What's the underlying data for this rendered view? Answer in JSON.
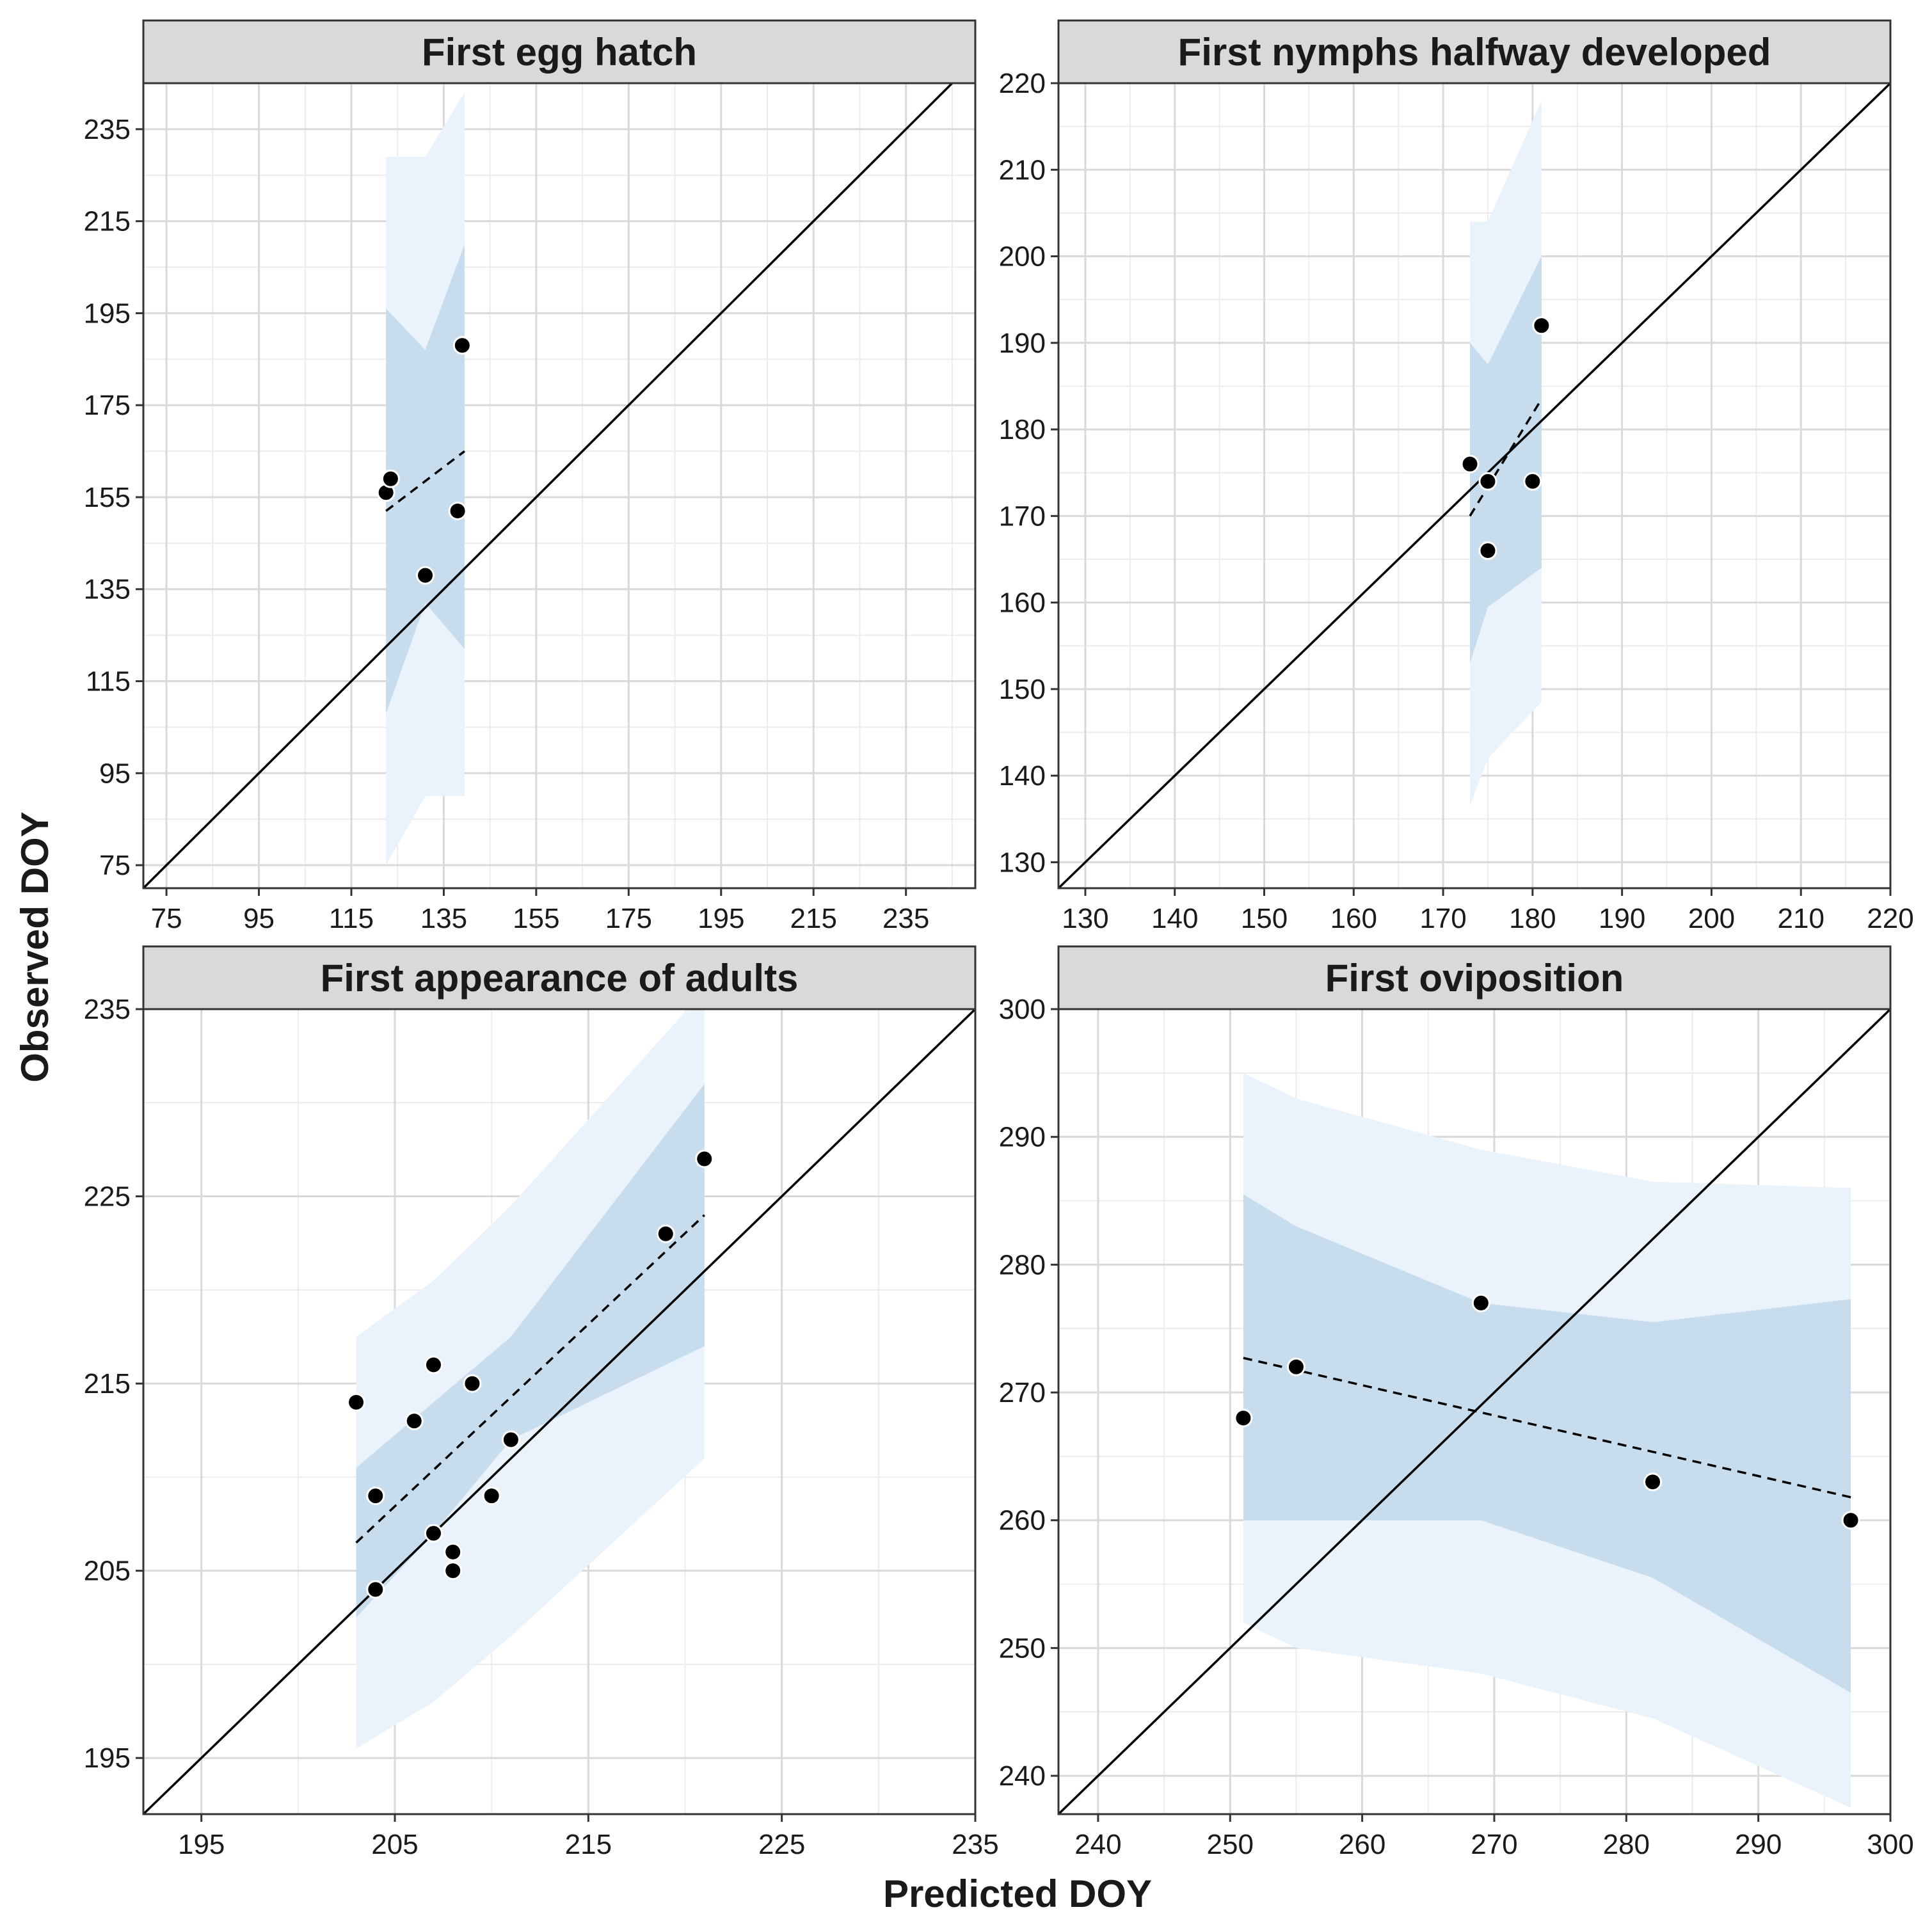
{
  "figure": {
    "xlabel": "Predicted DOY",
    "ylabel": "Observed DOY"
  },
  "colors": {
    "band_outer": "#eaf2fb",
    "band_inner": "#c7dced",
    "grid_major": "#d9d9d9",
    "grid_minor": "#ececec",
    "strip_fill": "#d9d9d9",
    "point": "#000000",
    "line": "#000000"
  },
  "chart_data": [
    {
      "type": "scatter",
      "title": "First egg hatch",
      "xlim": [
        70,
        250
      ],
      "ylim": [
        70,
        245
      ],
      "xticks": [
        75,
        95,
        115,
        135,
        155,
        175,
        195,
        215,
        235
      ],
      "yticks": [
        75,
        95,
        115,
        135,
        155,
        175,
        195,
        215,
        235
      ],
      "minor_step": 10,
      "points": [
        {
          "x": 122.5,
          "y": 156
        },
        {
          "x": 123.5,
          "y": 159
        },
        {
          "x": 131,
          "y": 138
        },
        {
          "x": 138,
          "y": 152
        },
        {
          "x": 139,
          "y": 188
        }
      ],
      "fit_line": [
        [
          122.5,
          152
        ],
        [
          139.5,
          165
        ]
      ],
      "band_inner": {
        "x": [
          122.5,
          131,
          139.5
        ],
        "lower": [
          108,
          132,
          122
        ],
        "upper": [
          196,
          187,
          210
        ]
      },
      "band_outer": {
        "x": [
          122.5,
          131,
          139.5
        ],
        "lower": [
          75,
          90,
          90
        ],
        "upper": [
          229,
          229,
          243
        ]
      },
      "identity_line": true
    },
    {
      "type": "scatter",
      "title": "First nymphs halfway developed",
      "xlim": [
        127,
        220
      ],
      "ylim": [
        127,
        220
      ],
      "xticks": [
        130,
        140,
        150,
        160,
        170,
        180,
        190,
        200,
        210,
        220
      ],
      "yticks": [
        130,
        140,
        150,
        160,
        170,
        180,
        190,
        200,
        210,
        220
      ],
      "minor_step": 5,
      "points": [
        {
          "x": 173,
          "y": 176
        },
        {
          "x": 175,
          "y": 174
        },
        {
          "x": 175,
          "y": 166
        },
        {
          "x": 180,
          "y": 174
        },
        {
          "x": 181,
          "y": 192
        }
      ],
      "fit_line": [
        [
          173,
          170
        ],
        [
          181,
          183.5
        ]
      ],
      "band_inner": {
        "x": [
          173,
          175,
          181
        ],
        "lower": [
          153,
          159.5,
          164
        ],
        "upper": [
          190,
          187.5,
          200
        ]
      },
      "band_outer": {
        "x": [
          173,
          175,
          181
        ],
        "lower": [
          136.5,
          142,
          148.5
        ],
        "upper": [
          204,
          204,
          218
        ]
      },
      "identity_line": true
    },
    {
      "type": "scatter",
      "title": "First appearance of adults",
      "xlim": [
        192,
        235
      ],
      "ylim": [
        192,
        235
      ],
      "xticks": [
        195,
        205,
        215,
        225,
        235
      ],
      "yticks": [
        195,
        205,
        215,
        225,
        235
      ],
      "minor_step": 5,
      "points": [
        {
          "x": 203,
          "y": 214
        },
        {
          "x": 204,
          "y": 209
        },
        {
          "x": 204,
          "y": 204
        },
        {
          "x": 206,
          "y": 213
        },
        {
          "x": 207,
          "y": 216
        },
        {
          "x": 207,
          "y": 207
        },
        {
          "x": 208,
          "y": 206
        },
        {
          "x": 208,
          "y": 205
        },
        {
          "x": 209,
          "y": 215
        },
        {
          "x": 210,
          "y": 209
        },
        {
          "x": 211,
          "y": 212
        },
        {
          "x": 219,
          "y": 223
        },
        {
          "x": 221,
          "y": 227
        }
      ],
      "fit_line": [
        [
          203,
          206.5
        ],
        [
          221,
          224
        ]
      ],
      "band_inner": {
        "x": [
          203,
          207,
          211,
          221
        ],
        "lower": [
          202.5,
          207,
          212,
          217
        ],
        "upper": [
          210.5,
          214,
          217.5,
          231
        ]
      },
      "band_outer": {
        "x": [
          203,
          207,
          211,
          221
        ],
        "lower": [
          195.5,
          198,
          201.5,
          211
        ],
        "upper": [
          217.5,
          220.5,
          224.5,
          236
        ]
      },
      "identity_line": true
    },
    {
      "type": "scatter",
      "title": "First oviposition",
      "xlim": [
        237,
        300
      ],
      "ylim": [
        237,
        300
      ],
      "xticks": [
        240,
        250,
        260,
        270,
        280,
        290,
        300
      ],
      "yticks": [
        240,
        250,
        260,
        270,
        280,
        290,
        300
      ],
      "minor_step": 5,
      "points": [
        {
          "x": 251,
          "y": 268
        },
        {
          "x": 255,
          "y": 272
        },
        {
          "x": 269,
          "y": 277
        },
        {
          "x": 282,
          "y": 263
        },
        {
          "x": 297,
          "y": 260
        }
      ],
      "fit_line": [
        [
          251,
          272.7
        ],
        [
          297,
          261.8
        ]
      ],
      "band_inner": {
        "x": [
          251,
          255,
          269,
          282,
          297
        ],
        "lower": [
          260,
          260,
          260,
          255.5,
          246.5
        ],
        "upper": [
          285.5,
          283,
          277,
          275.5,
          277.3
        ]
      },
      "band_outer": {
        "x": [
          251,
          255,
          269,
          282,
          297
        ],
        "lower": [
          252,
          250,
          248,
          244.5,
          237.5
        ],
        "upper": [
          295,
          293,
          289,
          286.5,
          286
        ]
      },
      "identity_line": true
    }
  ]
}
